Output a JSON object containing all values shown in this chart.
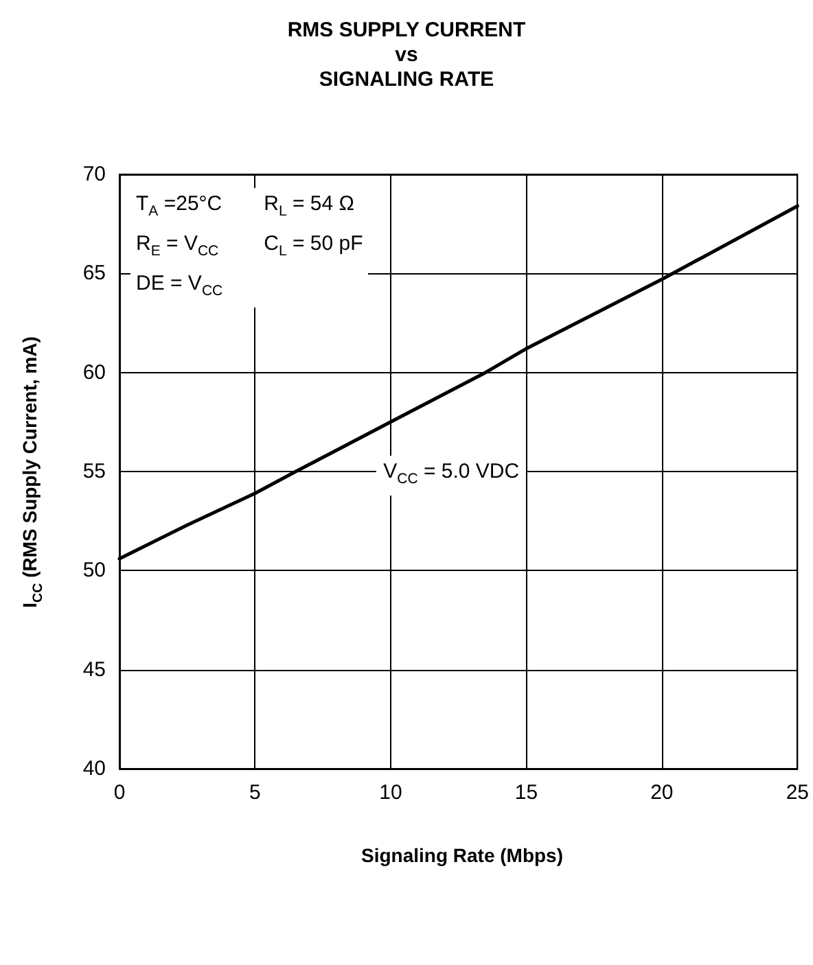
{
  "chart_data": {
    "type": "line",
    "title": "RMS SUPPLY CURRENT\nvs\nSIGNALING RATE",
    "xlabel": "Signaling Rate (Mbps)",
    "ylabel": "I$_{CC}$ (RMS Supply Current, mA)",
    "annotations": [
      "T$_{A}$ =25°C",
      "R$_{L}$ = 54 Ω",
      "R$_{E}$ = V$_{CC}$",
      "C$_{L}$ = 50 pF",
      "DE = V$_{CC}$"
    ],
    "x": [
      0,
      2.5,
      5,
      6.5,
      10,
      13.5,
      15,
      20,
      25
    ],
    "series": [
      {
        "name": "V$_{CC}$ = 5.0 VDC",
        "color": "#000000",
        "values": [
          50.6,
          52.3,
          53.9,
          55,
          57.5,
          60,
          61.2,
          64.7,
          68.4
        ]
      }
    ],
    "xlim": [
      0,
      25
    ],
    "xticks": [
      0,
      5,
      10,
      15,
      20,
      25
    ],
    "ylim": [
      40,
      70
    ],
    "yticks": [
      40,
      45,
      50,
      55,
      60,
      65,
      70
    ],
    "grid": true,
    "marker": "none",
    "line_style": "solid"
  }
}
